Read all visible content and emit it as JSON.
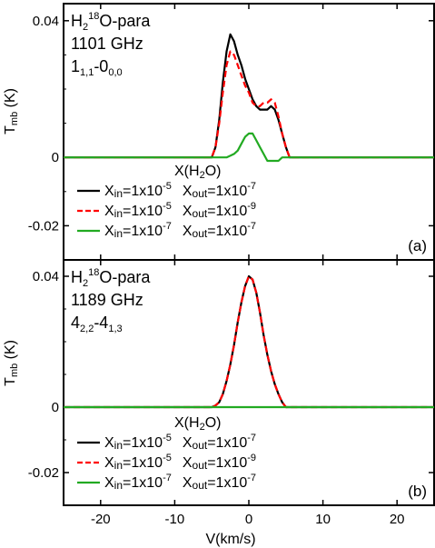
{
  "chart_data": [
    {
      "type": "line",
      "panel": "(a)",
      "annotation": {
        "mol_a": "H",
        "mol_sub1": "2",
        "mol_sup": "18",
        "mol_b": "O-para",
        "freq": "1101 GHz",
        "trans_main": "1",
        "trans_sub1": "1,1",
        "trans_mid": "-0",
        "trans_sub2": "0,0"
      },
      "ylabel": "T",
      "ylabel_sub": "mb",
      "ylabel_unit": " (K)",
      "xlim": [
        -25,
        25
      ],
      "ylim": [
        -0.03,
        0.045
      ],
      "yticks": [
        {
          "value": 0.04,
          "label": "0.04"
        },
        {
          "value": 0,
          "label": "0"
        },
        {
          "value": -0.02,
          "label": "-0.02"
        }
      ],
      "legend_title": "X(H2O)",
      "series": [
        {
          "name": "Xin=1x10-5 Xout=1x10-7",
          "color": "#000000",
          "dash": "none",
          "x": [
            -25,
            -5,
            -4.5,
            -4,
            -3.5,
            -3,
            -2.5,
            -2,
            -1.5,
            -1,
            -0.5,
            0,
            0.5,
            1,
            1.5,
            2,
            2.5,
            3,
            3.5,
            4,
            4.5,
            5,
            5.5,
            25
          ],
          "y": [
            0,
            0,
            0.003,
            0.011,
            0.022,
            0.031,
            0.036,
            0.034,
            0.03,
            0.027,
            0.023,
            0.02,
            0.017,
            0.015,
            0.014,
            0.014,
            0.014,
            0.015,
            0.014,
            0.011,
            0.007,
            0.003,
            0,
            0
          ]
        },
        {
          "name": "Xin=1x10-5 Xout=1x10-9",
          "color": "#ff0000",
          "dash": "7,4",
          "x": [
            -25,
            -5,
            -4.5,
            -4,
            -3.5,
            -3,
            -2.5,
            -2,
            -1.5,
            -1,
            -0.5,
            0,
            0.5,
            1,
            1.5,
            2,
            2.5,
            3,
            3.5,
            4,
            4.5,
            5,
            5.5,
            25
          ],
          "y": [
            0,
            0,
            0.003,
            0.01,
            0.019,
            0.027,
            0.031,
            0.03,
            0.027,
            0.024,
            0.021,
            0.019,
            0.016,
            0.015,
            0.015,
            0.016,
            0.016,
            0.017,
            0.016,
            0.012,
            0.007,
            0.003,
            0,
            0
          ]
        },
        {
          "name": "Xin=1x10-7 Xout=1x10-7",
          "color": "#22aa22",
          "dash": "none",
          "x": [
            -25,
            -5,
            -3,
            -2,
            -1.5,
            -1,
            -0.5,
            0,
            0.5,
            1,
            1.5,
            2,
            2.5,
            3,
            3.5,
            4,
            4.5,
            5,
            25
          ],
          "y": [
            0,
            0,
            0,
            0.001,
            0.002,
            0.004,
            0.006,
            0.007,
            0.007,
            0.005,
            0.003,
            0.001,
            -0.001,
            -0.001,
            -0.001,
            -0.001,
            0,
            0,
            0
          ]
        }
      ]
    },
    {
      "type": "line",
      "panel": "(b)",
      "annotation": {
        "mol_a": "H",
        "mol_sub1": "2",
        "mol_sup": "18",
        "mol_b": "O-para",
        "freq": "1189 GHz",
        "trans_main": "4",
        "trans_sub1": "2,2",
        "trans_mid": "-4",
        "trans_sub2": "1,3"
      },
      "ylabel": "T",
      "ylabel_sub": "mb",
      "ylabel_unit": " (K)",
      "xlim": [
        -25,
        25
      ],
      "ylim": [
        -0.03,
        0.045
      ],
      "yticks": [
        {
          "value": 0.04,
          "label": "0.04"
        },
        {
          "value": 0,
          "label": "0"
        },
        {
          "value": -0.02,
          "label": "-0.02"
        }
      ],
      "xticks": [
        {
          "value": -20,
          "label": "-20"
        },
        {
          "value": -10,
          "label": "-10"
        },
        {
          "value": 0,
          "label": "0"
        },
        {
          "value": 10,
          "label": "10"
        },
        {
          "value": 20,
          "label": "20"
        }
      ],
      "xlabel": "V(km/s)",
      "legend_title": "X(H2O)",
      "series": [
        {
          "name": "Xin=1x10-5 Xout=1x10-7",
          "color": "#000000",
          "dash": "none",
          "x": [
            -25,
            -5,
            -4.5,
            -4,
            -3.5,
            -3,
            -2.5,
            -2,
            -1.5,
            -1,
            -0.5,
            0,
            0.5,
            1,
            1.5,
            2,
            2.5,
            3,
            3.5,
            4,
            4.5,
            5,
            25
          ],
          "y": [
            0,
            0,
            0.0005,
            0.0015,
            0.004,
            0.008,
            0.013,
            0.019,
            0.026,
            0.032,
            0.037,
            0.04,
            0.039,
            0.035,
            0.029,
            0.022,
            0.016,
            0.011,
            0.007,
            0.004,
            0.0015,
            0,
            0
          ]
        },
        {
          "name": "Xin=1x10-5 Xout=1x10-9",
          "color": "#ff0000",
          "dash": "7,4",
          "x": [
            -25,
            -5,
            -4.5,
            -4,
            -3.5,
            -3,
            -2.5,
            -2,
            -1.5,
            -1,
            -0.5,
            0,
            0.5,
            1,
            1.5,
            2,
            2.5,
            3,
            3.5,
            4,
            4.5,
            5,
            25
          ],
          "y": [
            0,
            0,
            0.0005,
            0.0015,
            0.004,
            0.008,
            0.013,
            0.019,
            0.026,
            0.032,
            0.037,
            0.04,
            0.039,
            0.035,
            0.029,
            0.022,
            0.016,
            0.011,
            0.007,
            0.004,
            0.0015,
            0,
            0
          ]
        },
        {
          "name": "Xin=1x10-7 Xout=1x10-7",
          "color": "#22aa22",
          "dash": "none",
          "x": [
            -25,
            25
          ],
          "y": [
            0,
            0
          ]
        }
      ]
    }
  ],
  "legend_entries": [
    {
      "x1": "X",
      "x1_sub": "in",
      "eq1": "=1x10",
      "exp1": "-5",
      "x2": "X",
      "x2_sub": "out",
      "eq2": "=1x10",
      "exp2": "-7"
    },
    {
      "x1": "X",
      "x1_sub": "in",
      "eq1": "=1x10",
      "exp1": "-5",
      "x2": "X",
      "x2_sub": "out",
      "eq2": "=1x10",
      "exp2": "-9"
    },
    {
      "x1": "X",
      "x1_sub": "in",
      "eq1": "=1x10",
      "exp1": "-7",
      "x2": "X",
      "x2_sub": "out",
      "eq2": "=1x10",
      "exp2": "-7"
    }
  ],
  "legend_title_parts": {
    "a": "X(H",
    "sub": "2",
    "b": "O)"
  }
}
